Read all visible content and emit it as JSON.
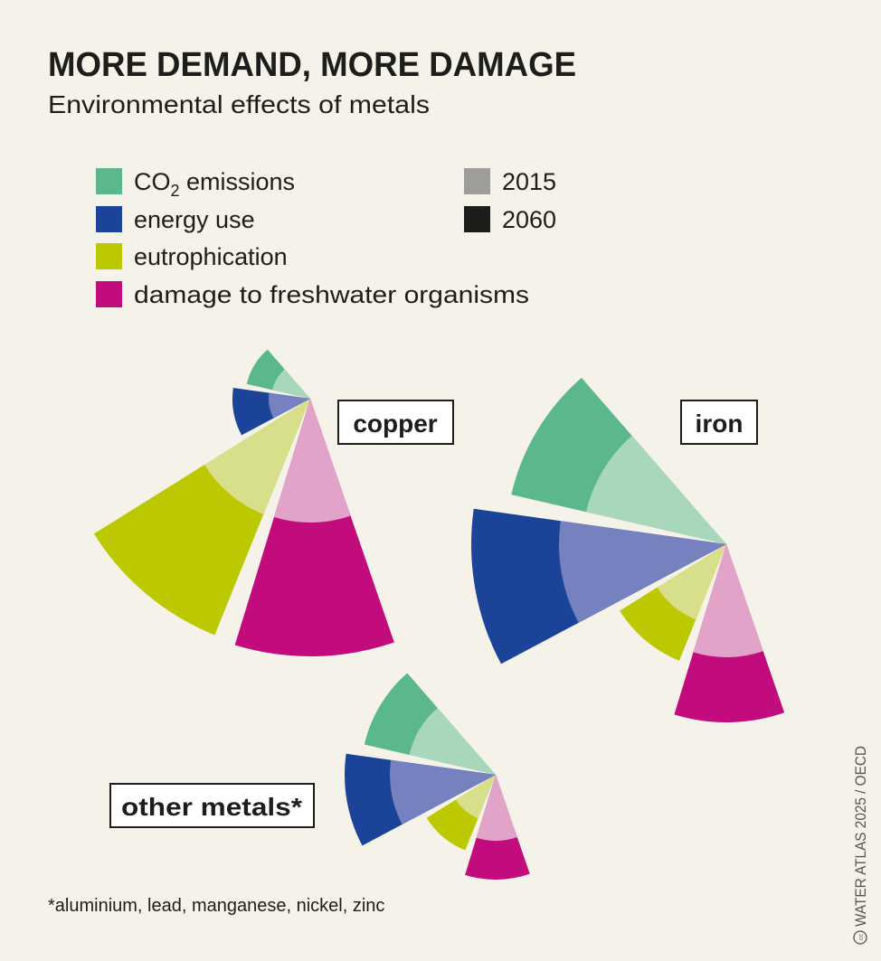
{
  "chart_data": {
    "type": "polar-area",
    "title": "MORE DEMAND, MORE DAMAGE",
    "subtitle": "Environmental effects of metals",
    "legend": {
      "categories": [
        {
          "key": "co2",
          "label_main": "CO",
          "label_sub": "2",
          "label_rest": " emissions",
          "color": "#5bb88c",
          "color_light": "#a9d7bc"
        },
        {
          "key": "energy",
          "label": "energy use",
          "color": "#1b4398",
          "color_light": "#7681bf"
        },
        {
          "key": "eutro",
          "label": "eutrophication",
          "color": "#bcc800",
          "color_light": "#d8df8a"
        },
        {
          "key": "fresh",
          "label": "damage to freshwater organisms",
          "color": "#c20c7d",
          "color_light": "#e2a3c9"
        }
      ],
      "years": [
        {
          "label": "2015",
          "color": "#9d9d9b"
        },
        {
          "label": "2060",
          "color": "#1d1d1b"
        }
      ]
    },
    "value_scale": "relative (no axis printed)",
    "metals": [
      {
        "name": "copper",
        "values": {
          "co2": {
            "2015": 43,
            "2060": 72
          },
          "energy": {
            "2015": 46,
            "2060": 86
          },
          "eutro": {
            "2015": 138,
            "2060": 282
          },
          "fresh": {
            "2015": 137,
            "2060": 285
          }
        }
      },
      {
        "name": "iron",
        "values": {
          "co2": {
            "2015": 159,
            "2060": 244
          },
          "energy": {
            "2015": 185,
            "2060": 282
          },
          "eutro": {
            "2015": 90,
            "2060": 139
          },
          "fresh": {
            "2015": 125,
            "2060": 197
          }
        }
      },
      {
        "name": "other metals*",
        "values": {
          "co2": {
            "2015": 98,
            "2060": 149
          },
          "energy": {
            "2015": 117,
            "2060": 167
          },
          "eutro": {
            "2015": 52,
            "2060": 90
          },
          "fresh": {
            "2015": 73,
            "2060": 116
          }
        }
      }
    ],
    "footnote": "*aluminium, lead, manganese, nickel, zinc",
    "credit": "WATER ATLAS 2025 / OECD"
  }
}
